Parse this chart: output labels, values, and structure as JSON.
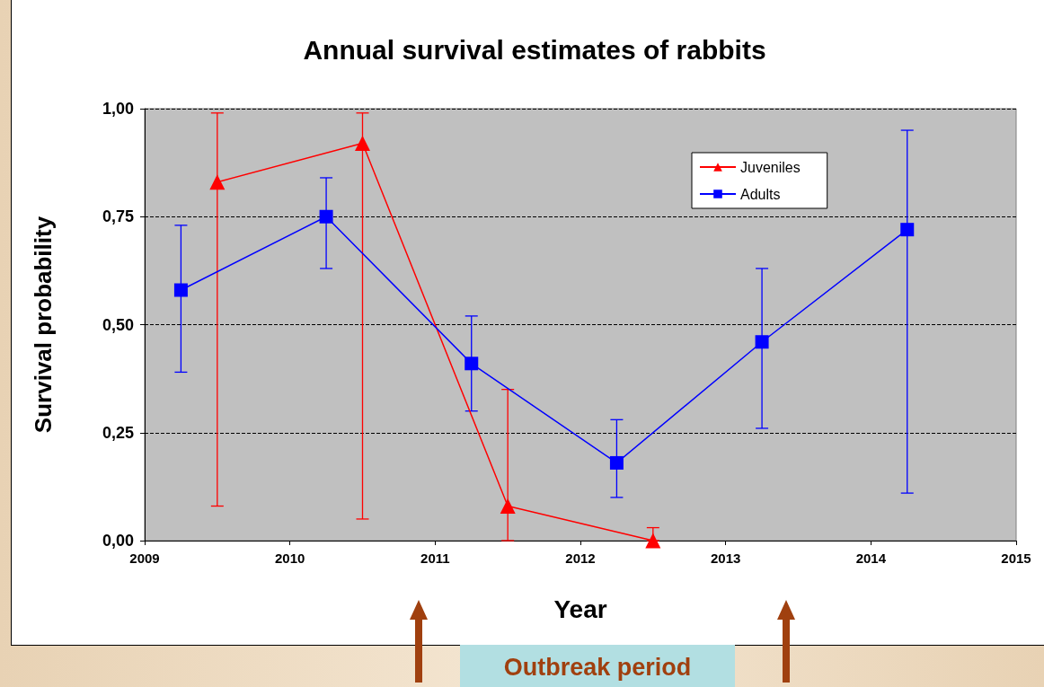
{
  "chart_data": {
    "type": "line",
    "title": "Annual survival estimates of rabbits",
    "xlabel": "Year",
    "ylabel": "Survival probability",
    "xlim": [
      2009,
      2015
    ],
    "xticks": [
      2009,
      2010,
      2011,
      2012,
      2013,
      2014,
      2015
    ],
    "ylim": [
      0,
      1
    ],
    "yticks": [
      {
        "value": 0,
        "label": "0,00"
      },
      {
        "value": 0.25,
        "label": "0,25"
      },
      {
        "value": 0.5,
        "label": "0,50"
      },
      {
        "value": 0.75,
        "label": "0,75"
      },
      {
        "value": 1,
        "label": "1,00"
      }
    ],
    "grid": "y",
    "legend": "top right",
    "line_style": "solid",
    "annotations": [
      "Outbreak period"
    ],
    "series": [
      {
        "name": "Juveniles",
        "color": "#ff0000",
        "marker": "triangle",
        "x": [
          2009.5,
          2010.5,
          2011.5,
          2012.5
        ],
        "values": [
          0.83,
          0.92,
          0.08,
          0.0
        ],
        "errors": [
          [
            0.08,
            0.99
          ],
          [
            0.05,
            0.99
          ],
          [
            0.0,
            0.35
          ],
          [
            0.0,
            0.03
          ]
        ]
      },
      {
        "name": "Adults",
        "color": "#0000ff",
        "marker": "square",
        "x": [
          2009.25,
          2010.25,
          2011.25,
          2012.25,
          2013.25,
          2014.25
        ],
        "values": [
          0.58,
          0.75,
          0.41,
          0.18,
          0.46,
          0.72
        ],
        "errors": [
          [
            0.39,
            0.73
          ],
          [
            0.63,
            0.84
          ],
          [
            0.3,
            0.52
          ],
          [
            0.1,
            0.28
          ],
          [
            0.26,
            0.63
          ],
          [
            0.11,
            0.95
          ]
        ]
      }
    ]
  }
}
